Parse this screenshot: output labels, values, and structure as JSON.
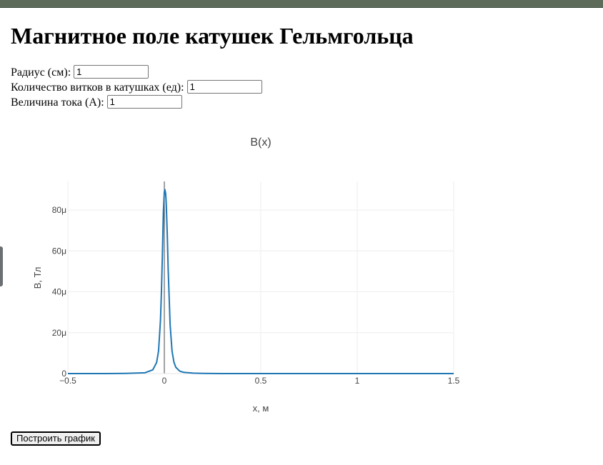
{
  "page": {
    "title": "Магнитное поле катушек Гельмгольца"
  },
  "form": {
    "radius": {
      "label": "Радиус (см):",
      "value": "1"
    },
    "turns": {
      "label": "Количество витков в катушках (ед):",
      "value": "1"
    },
    "current": {
      "label": "Величина тока (А):",
      "value": "1"
    }
  },
  "button": {
    "label": "Построить график"
  },
  "colors": {
    "line": "#1f77b4",
    "grid": "#eeeeee",
    "axis_text": "#444444"
  },
  "chart_data": {
    "type": "line",
    "title": "B(x)",
    "xlabel": "x, м",
    "ylabel": "B, Тл",
    "xlim": [
      -0.5,
      1.5
    ],
    "ylim": [
      0,
      9.4e-05
    ],
    "xticks": [
      -0.5,
      0,
      0.5,
      1,
      1.5
    ],
    "xtick_labels": [
      "−0.5",
      "0",
      "0.5",
      "1",
      "1.5"
    ],
    "yticks": [
      0,
      2e-05,
      4e-05,
      6e-05,
      8e-05
    ],
    "ytick_labels": [
      "0",
      "20μ",
      "40μ",
      "60μ",
      "80μ"
    ],
    "grid": true,
    "series": [
      {
        "x": [
          -0.5,
          -0.3,
          -0.2,
          -0.1,
          -0.06,
          -0.04,
          -0.03,
          -0.02,
          -0.015,
          -0.01,
          -0.005,
          0,
          0.003,
          0.005,
          0.007,
          0.01,
          0.015,
          0.02,
          0.03,
          0.04,
          0.05,
          0.06,
          0.08,
          0.1,
          0.15,
          0.2,
          0.3,
          0.5,
          1,
          1.5
        ],
        "y": [
          0,
          0,
          1e-07,
          4e-07,
          1.8e-06,
          5.4e-06,
          1.1e-05,
          2.6e-05,
          4e-05,
          5.8e-05,
          7.9e-05,
          8.9e-05,
          9e-05,
          8.9e-05,
          8.8e-05,
          8.3e-05,
          6.9e-05,
          5.1e-05,
          2.4e-05,
          1.1e-05,
          5.5e-06,
          3e-06,
          1.2e-06,
          6e-07,
          2e-07,
          1e-07,
          0,
          0,
          0,
          0
        ]
      }
    ],
    "zero_line_x": 0
  }
}
